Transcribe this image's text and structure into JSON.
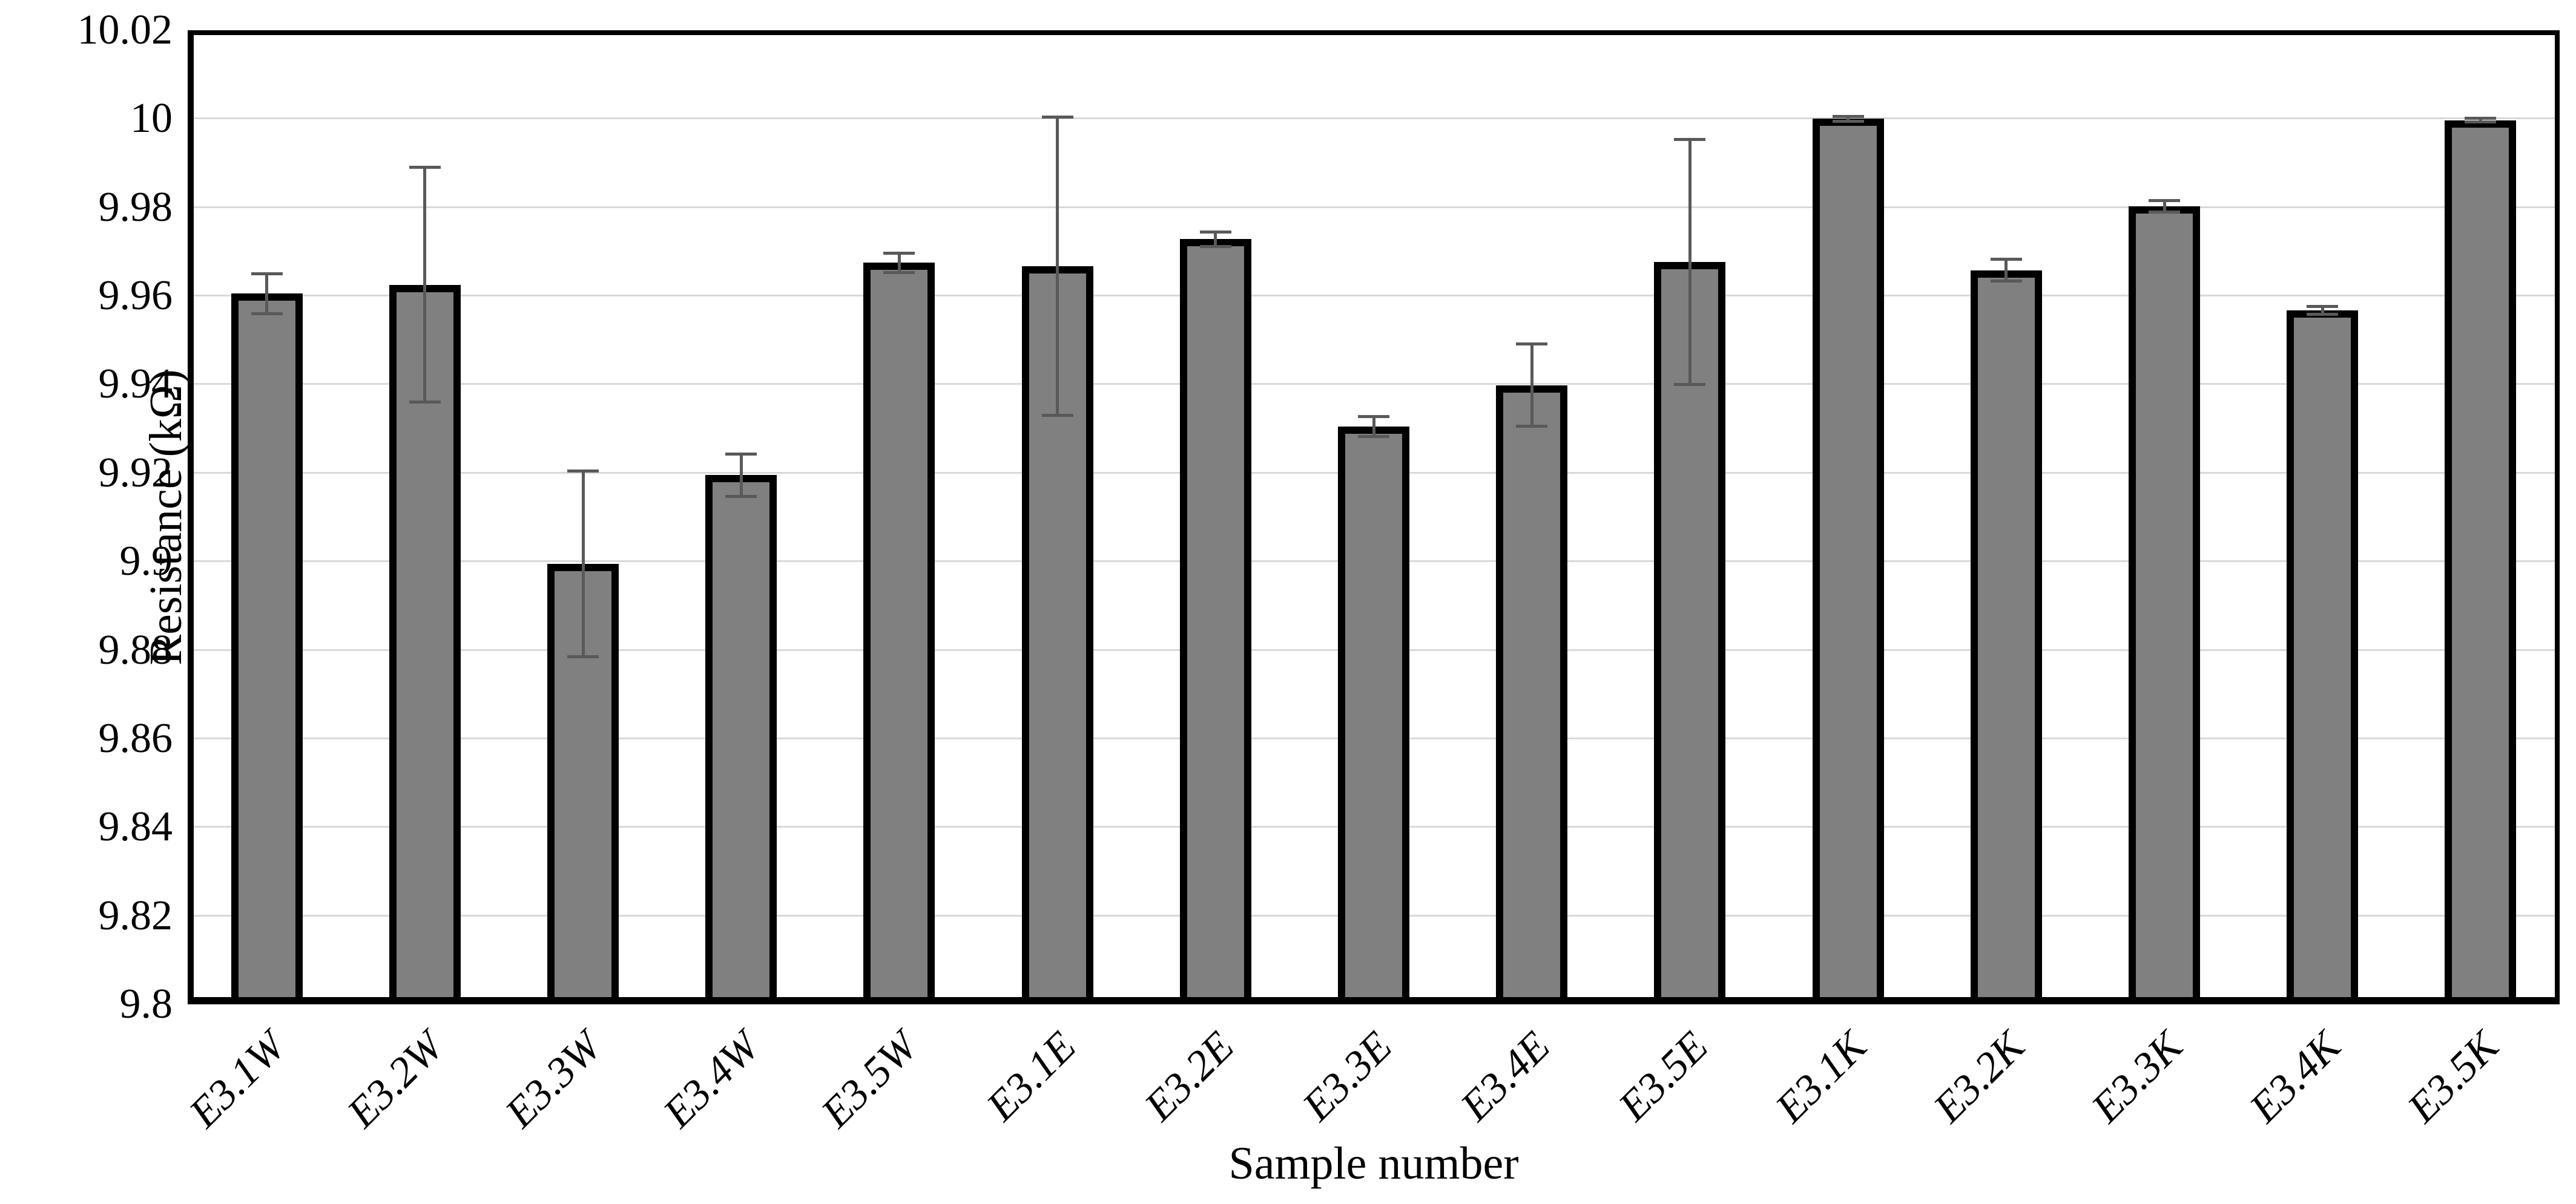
{
  "chart_data": {
    "type": "bar",
    "title": "",
    "xlabel": "Sample number",
    "ylabel": "Resistance (kΩ)",
    "ylim": [
      9.8,
      10.02
    ],
    "ytick_step": 0.02,
    "grid": "horizontal",
    "legend": "none",
    "yticks": [
      "10.02",
      "10",
      "9.98",
      "9.96",
      "9.94",
      "9.92",
      "9.9",
      "9.88",
      "9.86",
      "9.84",
      "9.82",
      "9.8"
    ],
    "categories": [
      "E3.1W",
      "E3.2W",
      "E3.3W",
      "E3.4W",
      "E3.5W",
      "E3.1E",
      "E3.2E",
      "E3.3E",
      "E3.4E",
      "E3.5E",
      "E3.1K",
      "E3.2K",
      "E3.3K",
      "E3.4K",
      "E3.5K"
    ],
    "values": [
      9.9605,
      9.9625,
      9.8995,
      9.9195,
      9.9675,
      9.9667,
      9.9728,
      9.9305,
      9.9398,
      9.9677,
      10.0,
      9.9658,
      9.9803,
      9.9567,
      9.9997
    ],
    "error_bars": [
      0.0045,
      0.0265,
      0.021,
      0.0048,
      0.0022,
      0.0337,
      0.0016,
      0.0022,
      0.0093,
      0.0277,
      0.0005,
      0.0025,
      0.0013,
      0.0009,
      0.0004
    ],
    "colors": {
      "bar_fill": "#808080",
      "bar_border": "#000000",
      "error_bar": "#595959",
      "gridline": "#d9d9d9",
      "axis_line": "#000000",
      "text": "#000000",
      "background": "#ffffff"
    }
  }
}
